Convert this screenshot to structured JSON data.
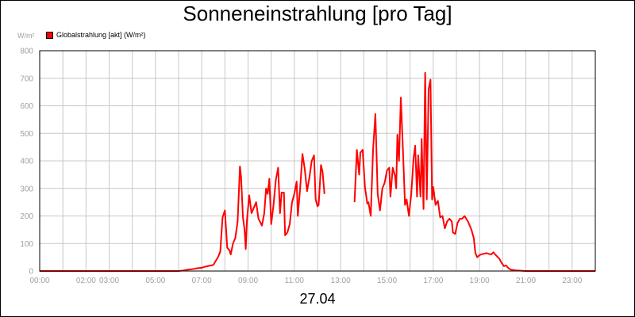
{
  "chart_data": {
    "type": "line",
    "title": "Sonneneinstrahlung [pro Tag]",
    "ylabel": "W/m²",
    "xlabel": "27.04",
    "ylim": [
      0,
      800
    ],
    "yticks": [
      0,
      100,
      200,
      300,
      400,
      500,
      600,
      700,
      800
    ],
    "xlim": [
      0,
      24
    ],
    "xticks": [
      {
        "h": 0,
        "label": "00:00"
      },
      {
        "h": 2,
        "label": "02:00"
      },
      {
        "h": 3,
        "label": "03:00"
      },
      {
        "h": 5,
        "label": "05:00"
      },
      {
        "h": 7,
        "label": "07:00"
      },
      {
        "h": 9,
        "label": "09:00"
      },
      {
        "h": 11,
        "label": "11:00"
      },
      {
        "h": 13,
        "label": "13:00"
      },
      {
        "h": 15,
        "label": "15:00"
      },
      {
        "h": 17,
        "label": "17:00"
      },
      {
        "h": 19,
        "label": "19:00"
      },
      {
        "h": 21,
        "label": "21:00"
      },
      {
        "h": 23,
        "label": "23:00"
      }
    ],
    "grid": true,
    "legend_position": "top-left",
    "series": [
      {
        "name": "Globalstrahlung [akt] (W/m²)",
        "color": "#ff0000",
        "segments": [
          [
            [
              0.0,
              0
            ],
            [
              6.0,
              0
            ],
            [
              6.2,
              2
            ],
            [
              6.4,
              5
            ],
            [
              6.6,
              7
            ],
            [
              6.8,
              10
            ],
            [
              7.0,
              12
            ],
            [
              7.2,
              17
            ],
            [
              7.5,
              22
            ],
            [
              7.7,
              50
            ],
            [
              7.8,
              70
            ],
            [
              7.9,
              195
            ],
            [
              8.0,
              220
            ],
            [
              8.1,
              85
            ],
            [
              8.2,
              75
            ],
            [
              8.25,
              60
            ],
            [
              8.35,
              100
            ],
            [
              8.45,
              120
            ],
            [
              8.55,
              180
            ],
            [
              8.65,
              380
            ],
            [
              8.7,
              340
            ],
            [
              8.78,
              195
            ],
            [
              8.85,
              150
            ],
            [
              8.9,
              80
            ],
            [
              8.95,
              180
            ],
            [
              9.05,
              275
            ],
            [
              9.15,
              210
            ],
            [
              9.25,
              230
            ],
            [
              9.35,
              250
            ],
            [
              9.45,
              190
            ],
            [
              9.6,
              165
            ],
            [
              9.7,
              210
            ],
            [
              9.78,
              300
            ],
            [
              9.85,
              280
            ],
            [
              9.92,
              335
            ],
            [
              10.0,
              170
            ],
            [
              10.1,
              240
            ],
            [
              10.2,
              330
            ],
            [
              10.3,
              375
            ],
            [
              10.38,
              210
            ],
            [
              10.45,
              285
            ],
            [
              10.55,
              285
            ],
            [
              10.6,
              130
            ],
            [
              10.7,
              140
            ],
            [
              10.8,
              170
            ],
            [
              10.9,
              250
            ],
            [
              11.0,
              280
            ],
            [
              11.1,
              325
            ],
            [
              11.15,
              200
            ],
            [
              11.25,
              300
            ],
            [
              11.35,
              425
            ],
            [
              11.45,
              370
            ],
            [
              11.55,
              290
            ],
            [
              11.65,
              340
            ],
            [
              11.75,
              400
            ],
            [
              11.85,
              420
            ],
            [
              11.92,
              260
            ],
            [
              12.0,
              235
            ],
            [
              12.05,
              240
            ],
            [
              12.15,
              385
            ],
            [
              12.22,
              360
            ],
            [
              12.3,
              280
            ]
          ],
          [
            [
              13.6,
              250
            ],
            [
              13.7,
              440
            ],
            [
              13.8,
              350
            ],
            [
              13.85,
              430
            ],
            [
              13.95,
              440
            ],
            [
              14.05,
              305
            ],
            [
              14.15,
              245
            ],
            [
              14.2,
              250
            ],
            [
              14.3,
              200
            ],
            [
              14.4,
              440
            ],
            [
              14.5,
              570
            ],
            [
              14.6,
              280
            ],
            [
              14.7,
              220
            ],
            [
              14.8,
              300
            ],
            [
              14.9,
              320
            ],
            [
              15.0,
              365
            ],
            [
              15.1,
              375
            ],
            [
              15.15,
              270
            ],
            [
              15.25,
              375
            ],
            [
              15.35,
              345
            ],
            [
              15.4,
              300
            ],
            [
              15.45,
              495
            ],
            [
              15.52,
              400
            ],
            [
              15.6,
              630
            ],
            [
              15.7,
              420
            ],
            [
              15.78,
              240
            ],
            [
              15.85,
              260
            ],
            [
              15.95,
              200
            ],
            [
              16.05,
              280
            ],
            [
              16.15,
              410
            ],
            [
              16.22,
              455
            ],
            [
              16.3,
              270
            ],
            [
              16.35,
              420
            ],
            [
              16.45,
              270
            ],
            [
              16.5,
              480
            ],
            [
              16.58,
              225
            ],
            [
              16.65,
              720
            ],
            [
              16.72,
              260
            ],
            [
              16.8,
              660
            ],
            [
              16.88,
              695
            ],
            [
              16.95,
              260
            ],
            [
              17.0,
              305
            ],
            [
              17.1,
              240
            ],
            [
              17.2,
              255
            ],
            [
              17.3,
              195
            ],
            [
              17.4,
              200
            ],
            [
              17.5,
              155
            ],
            [
              17.6,
              180
            ],
            [
              17.7,
              190
            ],
            [
              17.8,
              180
            ],
            [
              17.85,
              140
            ],
            [
              17.95,
              135
            ],
            [
              18.05,
              175
            ],
            [
              18.15,
              190
            ],
            [
              18.25,
              190
            ],
            [
              18.35,
              200
            ],
            [
              18.5,
              180
            ],
            [
              18.65,
              150
            ],
            [
              18.75,
              120
            ],
            [
              18.82,
              65
            ],
            [
              18.9,
              50
            ],
            [
              19.0,
              58
            ],
            [
              19.15,
              62
            ],
            [
              19.3,
              65
            ],
            [
              19.5,
              60
            ],
            [
              19.6,
              68
            ],
            [
              19.7,
              58
            ],
            [
              19.85,
              45
            ],
            [
              19.95,
              30
            ],
            [
              20.05,
              18
            ],
            [
              20.15,
              20
            ],
            [
              20.25,
              10
            ],
            [
              20.35,
              5
            ],
            [
              20.6,
              2
            ],
            [
              21.0,
              0
            ],
            [
              24.0,
              0
            ]
          ]
        ]
      }
    ]
  }
}
